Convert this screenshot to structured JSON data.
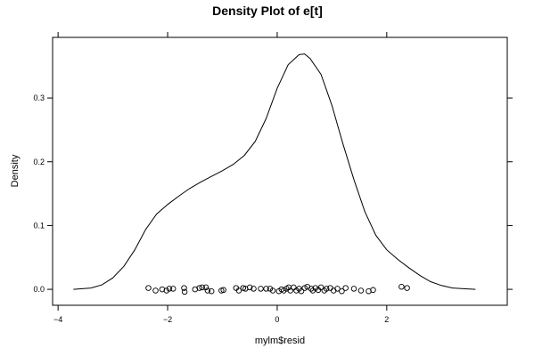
{
  "chart_data": {
    "type": "line",
    "title": "Density Plot of e[t]",
    "xlabel": "mylm$resid",
    "ylabel": "Density",
    "xlim": [
      -4.1,
      4.2
    ],
    "ylim": [
      -0.025,
      0.395
    ],
    "x_ticks": [
      -4,
      -2,
      0,
      2
    ],
    "x_tick_labels": [
      "−4",
      "−2",
      "0",
      "2"
    ],
    "y_ticks": [
      0.0,
      0.1,
      0.2,
      0.3
    ],
    "y_tick_labels": [
      "0.0",
      "0.1",
      "0.2",
      "0.3"
    ],
    "grid": false,
    "series": [
      {
        "x": [
          -3.72,
          -3.4,
          -3.2,
          -3.0,
          -2.8,
          -2.6,
          -2.4,
          -2.2,
          -2.0,
          -1.8,
          -1.6,
          -1.4,
          -1.2,
          -1.0,
          -0.8,
          -0.6,
          -0.4,
          -0.2,
          0.0,
          0.2,
          0.4,
          0.5,
          0.6,
          0.8,
          1.0,
          1.2,
          1.4,
          1.6,
          1.8,
          2.0,
          2.2,
          2.4,
          2.6,
          2.8,
          3.0,
          3.2,
          3.4,
          3.62
        ],
        "y": [
          0.0,
          0.002,
          0.007,
          0.018,
          0.036,
          0.062,
          0.094,
          0.118,
          0.133,
          0.146,
          0.158,
          0.168,
          0.177,
          0.186,
          0.196,
          0.21,
          0.232,
          0.268,
          0.315,
          0.352,
          0.368,
          0.369,
          0.362,
          0.337,
          0.288,
          0.228,
          0.172,
          0.122,
          0.085,
          0.062,
          0.047,
          0.034,
          0.022,
          0.012,
          0.006,
          0.002,
          0.001,
          0.0
        ]
      }
    ],
    "rug_points": [
      {
        "x": -2.35,
        "y": 0.002
      },
      {
        "x": -2.22,
        "y": -0.002
      },
      {
        "x": -2.1,
        "y": 0.0
      },
      {
        "x": -2.02,
        "y": -0.002
      },
      {
        "x": -1.97,
        "y": 0.001
      },
      {
        "x": -1.9,
        "y": 0.001
      },
      {
        "x": -1.7,
        "y": 0.002
      },
      {
        "x": -1.69,
        "y": -0.004
      },
      {
        "x": -1.5,
        "y": 0.0
      },
      {
        "x": -1.42,
        "y": 0.002
      },
      {
        "x": -1.37,
        "y": 0.003
      },
      {
        "x": -1.3,
        "y": 0.003
      },
      {
        "x": -1.27,
        "y": -0.002
      },
      {
        "x": -1.2,
        "y": -0.003
      },
      {
        "x": -1.02,
        "y": -0.002
      },
      {
        "x": -0.98,
        "y": -0.001
      },
      {
        "x": -0.75,
        "y": 0.002
      },
      {
        "x": -0.7,
        "y": -0.002
      },
      {
        "x": -0.62,
        "y": 0.002
      },
      {
        "x": -0.58,
        "y": 0.001
      },
      {
        "x": -0.5,
        "y": 0.003
      },
      {
        "x": -0.43,
        "y": 0.001
      },
      {
        "x": -0.3,
        "y": 0.001
      },
      {
        "x": -0.2,
        "y": 0.001
      },
      {
        "x": -0.13,
        "y": 0.001
      },
      {
        "x": -0.08,
        "y": -0.002
      },
      {
        "x": 0.03,
        "y": -0.003
      },
      {
        "x": 0.08,
        "y": 0.0
      },
      {
        "x": 0.12,
        "y": -0.002
      },
      {
        "x": 0.17,
        "y": 0.001
      },
      {
        "x": 0.21,
        "y": 0.003
      },
      {
        "x": 0.24,
        "y": -0.002
      },
      {
        "x": 0.3,
        "y": 0.003
      },
      {
        "x": 0.35,
        "y": -0.002
      },
      {
        "x": 0.4,
        "y": 0.001
      },
      {
        "x": 0.44,
        "y": -0.003
      },
      {
        "x": 0.5,
        "y": 0.002
      },
      {
        "x": 0.55,
        "y": 0.004
      },
      {
        "x": 0.62,
        "y": 0.001
      },
      {
        "x": 0.65,
        "y": -0.002
      },
      {
        "x": 0.7,
        "y": 0.002
      },
      {
        "x": 0.75,
        "y": -0.001
      },
      {
        "x": 0.8,
        "y": 0.003
      },
      {
        "x": 0.86,
        "y": -0.002
      },
      {
        "x": 0.9,
        "y": 0.001
      },
      {
        "x": 0.97,
        "y": 0.002
      },
      {
        "x": 1.03,
        "y": -0.002
      },
      {
        "x": 1.1,
        "y": 0.001
      },
      {
        "x": 1.18,
        "y": -0.003
      },
      {
        "x": 1.25,
        "y": 0.002
      },
      {
        "x": 1.4,
        "y": 0.001
      },
      {
        "x": 1.53,
        "y": -0.002
      },
      {
        "x": 1.67,
        "y": -0.003
      },
      {
        "x": 1.75,
        "y": -0.001
      },
      {
        "x": 2.27,
        "y": 0.004
      },
      {
        "x": 2.37,
        "y": 0.002
      }
    ]
  }
}
